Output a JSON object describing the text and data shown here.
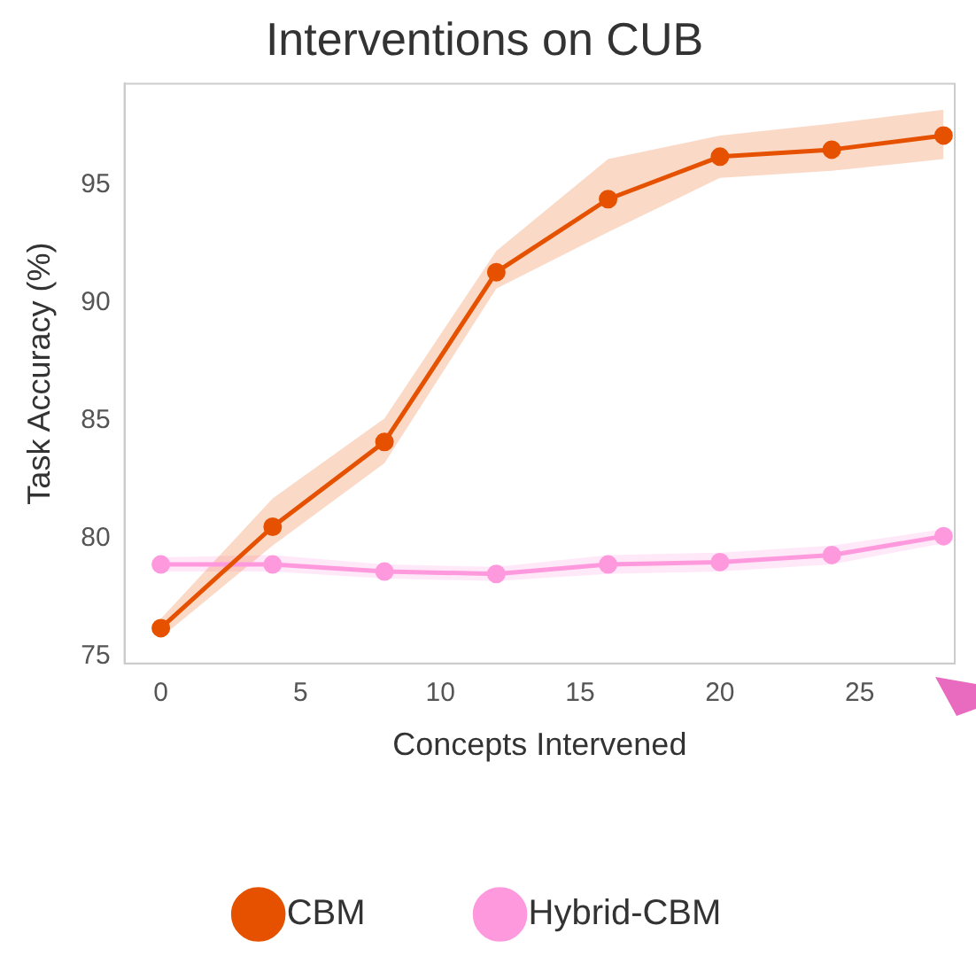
{
  "chart_data": {
    "type": "line",
    "title": "Interventions on CUB",
    "xlabel": "Concepts Intervened",
    "ylabel": "Task Accuracy (%)",
    "x": [
      0,
      4,
      8,
      12,
      16,
      20,
      24,
      28
    ],
    "series": [
      {
        "name": "CBM",
        "color": "#e65100",
        "values": [
          76.2,
          80.5,
          84.1,
          91.3,
          94.4,
          96.2,
          96.5,
          97.1
        ],
        "lower": [
          75.8,
          79.7,
          83.2,
          90.6,
          93.0,
          95.3,
          95.6,
          96.1
        ],
        "upper": [
          76.6,
          81.7,
          85.1,
          92.2,
          96.1,
          97.1,
          97.6,
          98.2
        ]
      },
      {
        "name": "Hybrid-CBM",
        "color": "#ff99dd",
        "values": [
          78.9,
          78.9,
          78.6,
          78.5,
          78.9,
          79.0,
          79.3,
          80.1
        ],
        "lower": [
          78.6,
          78.6,
          78.3,
          78.2,
          78.5,
          78.6,
          78.9,
          79.8
        ],
        "upper": [
          79.2,
          79.3,
          78.9,
          78.8,
          79.3,
          79.4,
          79.7,
          80.4
        ]
      }
    ],
    "xlim": [
      -1.3,
      28.4
    ],
    "ylim": [
      74.7,
      99.3
    ],
    "xticks": [
      0,
      5,
      10,
      15,
      20,
      25
    ],
    "yticks": [
      75,
      80,
      85,
      90,
      95
    ],
    "grid": false,
    "legend": "bottom",
    "marker": "circle",
    "line_style": "solid"
  }
}
